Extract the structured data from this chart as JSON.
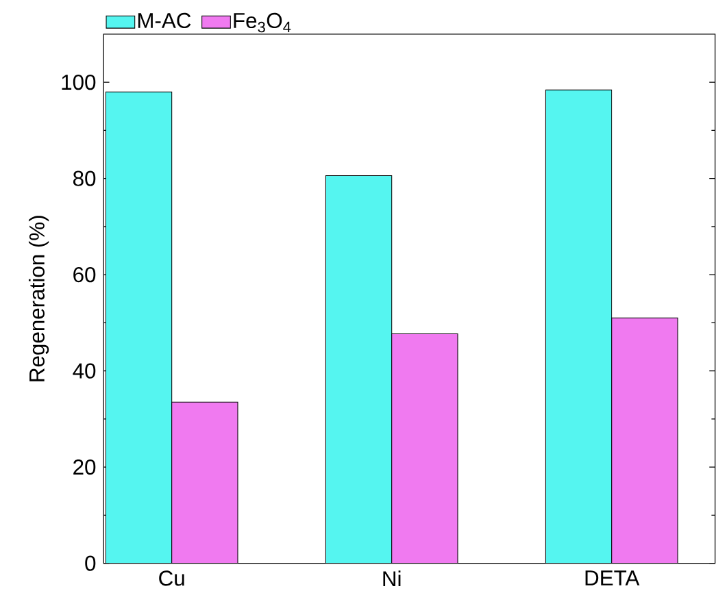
{
  "chart_data": {
    "type": "bar",
    "ylabel": "Regeneration (%)",
    "categories": [
      "Cu",
      "Ni",
      "DETA"
    ],
    "series": [
      {
        "name": "M-AC",
        "color": "#55f5f0",
        "values": [
          98.0,
          80.6,
          98.4
        ]
      },
      {
        "name": "Fe$_{3}$O$_{4}$",
        "color": "#f07af0",
        "values": [
          33.5,
          47.7,
          51.0
        ]
      }
    ],
    "ylim": [
      0,
      110
    ],
    "yticks": [
      0,
      20,
      40,
      60,
      80,
      100
    ],
    "grid": false,
    "legend": "top"
  }
}
